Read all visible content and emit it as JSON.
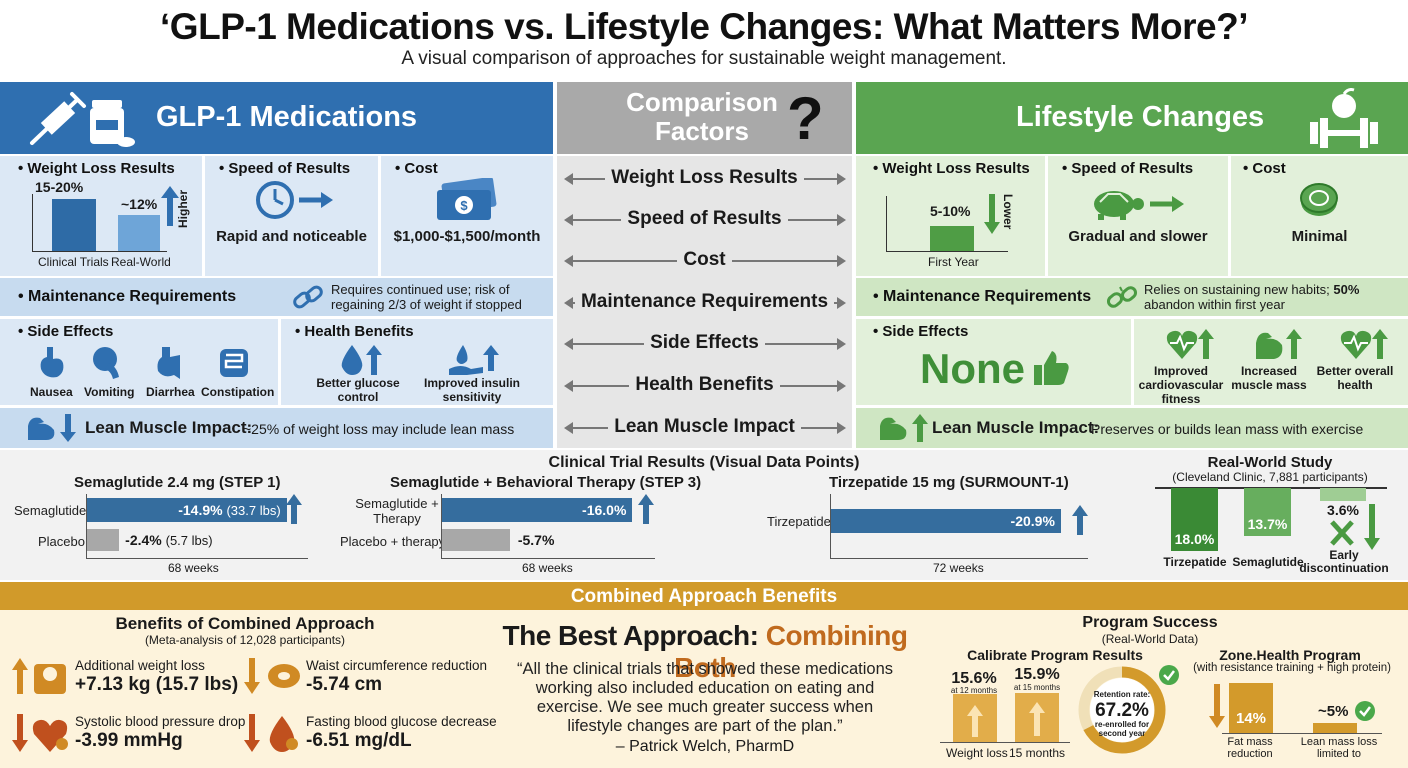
{
  "header": {
    "title": "‘GLP-1 Medications vs. Lifestyle Changes: What Matters More?’",
    "subtitle": "A visual comparison of approaches for sustainable weight management."
  },
  "glp1": {
    "title": "GLP-1 Medications",
    "weight_loss": {
      "label": "• Weight Loss Results",
      "trials_value": "15-20%",
      "real_value": "~12%",
      "trials_label": "Clinical Trials",
      "real_label": "Real-World",
      "direction": "Higher"
    },
    "speed": {
      "label": "• Speed of Results",
      "text": "Rapid and noticeable"
    },
    "cost": {
      "label": "• Cost",
      "text": "$1,000-$1,500/month"
    },
    "maintenance": {
      "label": "• Maintenance Requirements",
      "text": "Requires continued use; risk of regaining 2/3 of weight if stopped"
    },
    "side_effects": {
      "label": "• Side Effects",
      "items": [
        "Nausea",
        "Vomiting",
        "Diarrhea",
        "Constipation"
      ]
    },
    "health_benefits": {
      "label": "• Health Benefits",
      "items": [
        "Better glucose control",
        "Improved insulin sensitivity"
      ]
    },
    "lean_muscle": {
      "label": "Lean Muscle Impact:",
      "text": "~25% of weight loss may include lean mass"
    }
  },
  "factors": {
    "title": "Comparison Factors",
    "items": [
      "Weight Loss Results",
      "Speed of Results",
      "Cost",
      "Maintenance Requirements",
      "Side Effects",
      "Health Benefits",
      "Lean Muscle Impact"
    ]
  },
  "lifestyle": {
    "title": "Lifestyle Changes",
    "weight_loss": {
      "label": "• Weight Loss Results",
      "value": "5-10%",
      "period": "First Year",
      "direction": "Lower"
    },
    "speed": {
      "label": "• Speed of Results",
      "text": "Gradual and slower"
    },
    "cost": {
      "label": "• Cost",
      "text": "Minimal"
    },
    "maintenance": {
      "label": "• Maintenance Requirements",
      "text": "Relies on sustaining new habits;",
      "text_bold": "50%",
      "text2": "abandon within first year"
    },
    "side_effects": {
      "label": "• Side Effects",
      "value": "None"
    },
    "health_benefits": {
      "items": [
        "Improved cardiovascular fitness",
        "Increased muscle mass",
        "Better overall health"
      ]
    },
    "lean_muscle": {
      "label": "Lean Muscle Impact:",
      "text": "Preserves or builds lean mass with exercise"
    }
  },
  "trials": {
    "title": "Clinical Trial Results (Visual Data Points)",
    "step1": {
      "title": "Semaglutide 2.4 mg (STEP 1)",
      "rows": [
        {
          "label": "Semaglutide",
          "value": "-14.9%",
          "detail": "(33.7 lbs)",
          "pct": 14.9
        },
        {
          "label": "Placebo",
          "value": "-2.4%",
          "detail": "(5.7 lbs)",
          "pct": 2.4
        }
      ],
      "duration": "68 weeks"
    },
    "step3": {
      "title": "Semaglutide + Behavioral Therapy (STEP 3)",
      "rows": [
        {
          "label_line1": "Semaglutide +",
          "label_line2": "Therapy",
          "value": "-16.0%",
          "pct": 16.0
        },
        {
          "label": "Placebo + therapy",
          "value": "-5.7%",
          "pct": 5.7
        }
      ],
      "duration": "68 weeks"
    },
    "surmount": {
      "title": "Tirzepatide 15 mg (SURMOUNT-1)",
      "rows": [
        {
          "label": "Tirzepatide",
          "value": "-20.9%",
          "pct": 20.9
        }
      ],
      "duration": "72 weeks"
    },
    "realworld": {
      "title": "Real-World Study",
      "subtitle": "(Cleveland Clinic, 7,881 participants)",
      "bars": [
        {
          "label": "Tirzepatide",
          "value": "18.0%",
          "pct": 18.0
        },
        {
          "label": "Semaglutide",
          "value": "13.7%",
          "pct": 13.7
        },
        {
          "label": "Early discontinuation",
          "value": "3.6%",
          "pct": 3.6
        }
      ]
    }
  },
  "combined": {
    "banner": "Combined Approach Benefits",
    "benefits_title": "Benefits of Combined Approach",
    "benefits_subtitle": "(Meta-analysis of 12,028 participants)",
    "benefits": [
      {
        "label": "Additional weight loss",
        "value": "+7.13 kg (15.7 lbs)"
      },
      {
        "label": "Waist circumference reduction",
        "value": "-5.74 cm"
      },
      {
        "label": "Systolic blood pressure drop",
        "value": "-3.99 mmHg"
      },
      {
        "label": "Fasting blood glucose decrease",
        "value": "-6.51 mg/dL"
      }
    ],
    "best_title_a": "The Best Approach:",
    "best_title_b": "Combining Both",
    "quote": "“All the clinical trials that showed these medications working also included education on eating and exercise. We see much greater success when lifestyle changes are part of the plan.”",
    "quote_author": "– Patrick Welch, PharmD",
    "program_title": "Program Success",
    "program_subtitle": "(Real-World Data)",
    "calibrate": {
      "title": "Calibrate Program Results",
      "v1": "15.6%",
      "v1_sub": "at 12 months",
      "v2": "15.9%",
      "v2_sub": "at 15 months",
      "label1": "Weight loss",
      "label2": "15 months",
      "retention_label": "Retention rate:",
      "retention_value": "67.2%",
      "retention_sub": "re-enrolled for second year",
      "retention_pct": 67.2
    },
    "zone": {
      "title": "Zone.Health Program",
      "subtitle": "(with resistance training + high protein)",
      "fat_value": "14%",
      "fat_label": "Fat mass reduction",
      "lean_value": "~5%",
      "lean_label": "Lean mass loss limited to"
    }
  }
}
